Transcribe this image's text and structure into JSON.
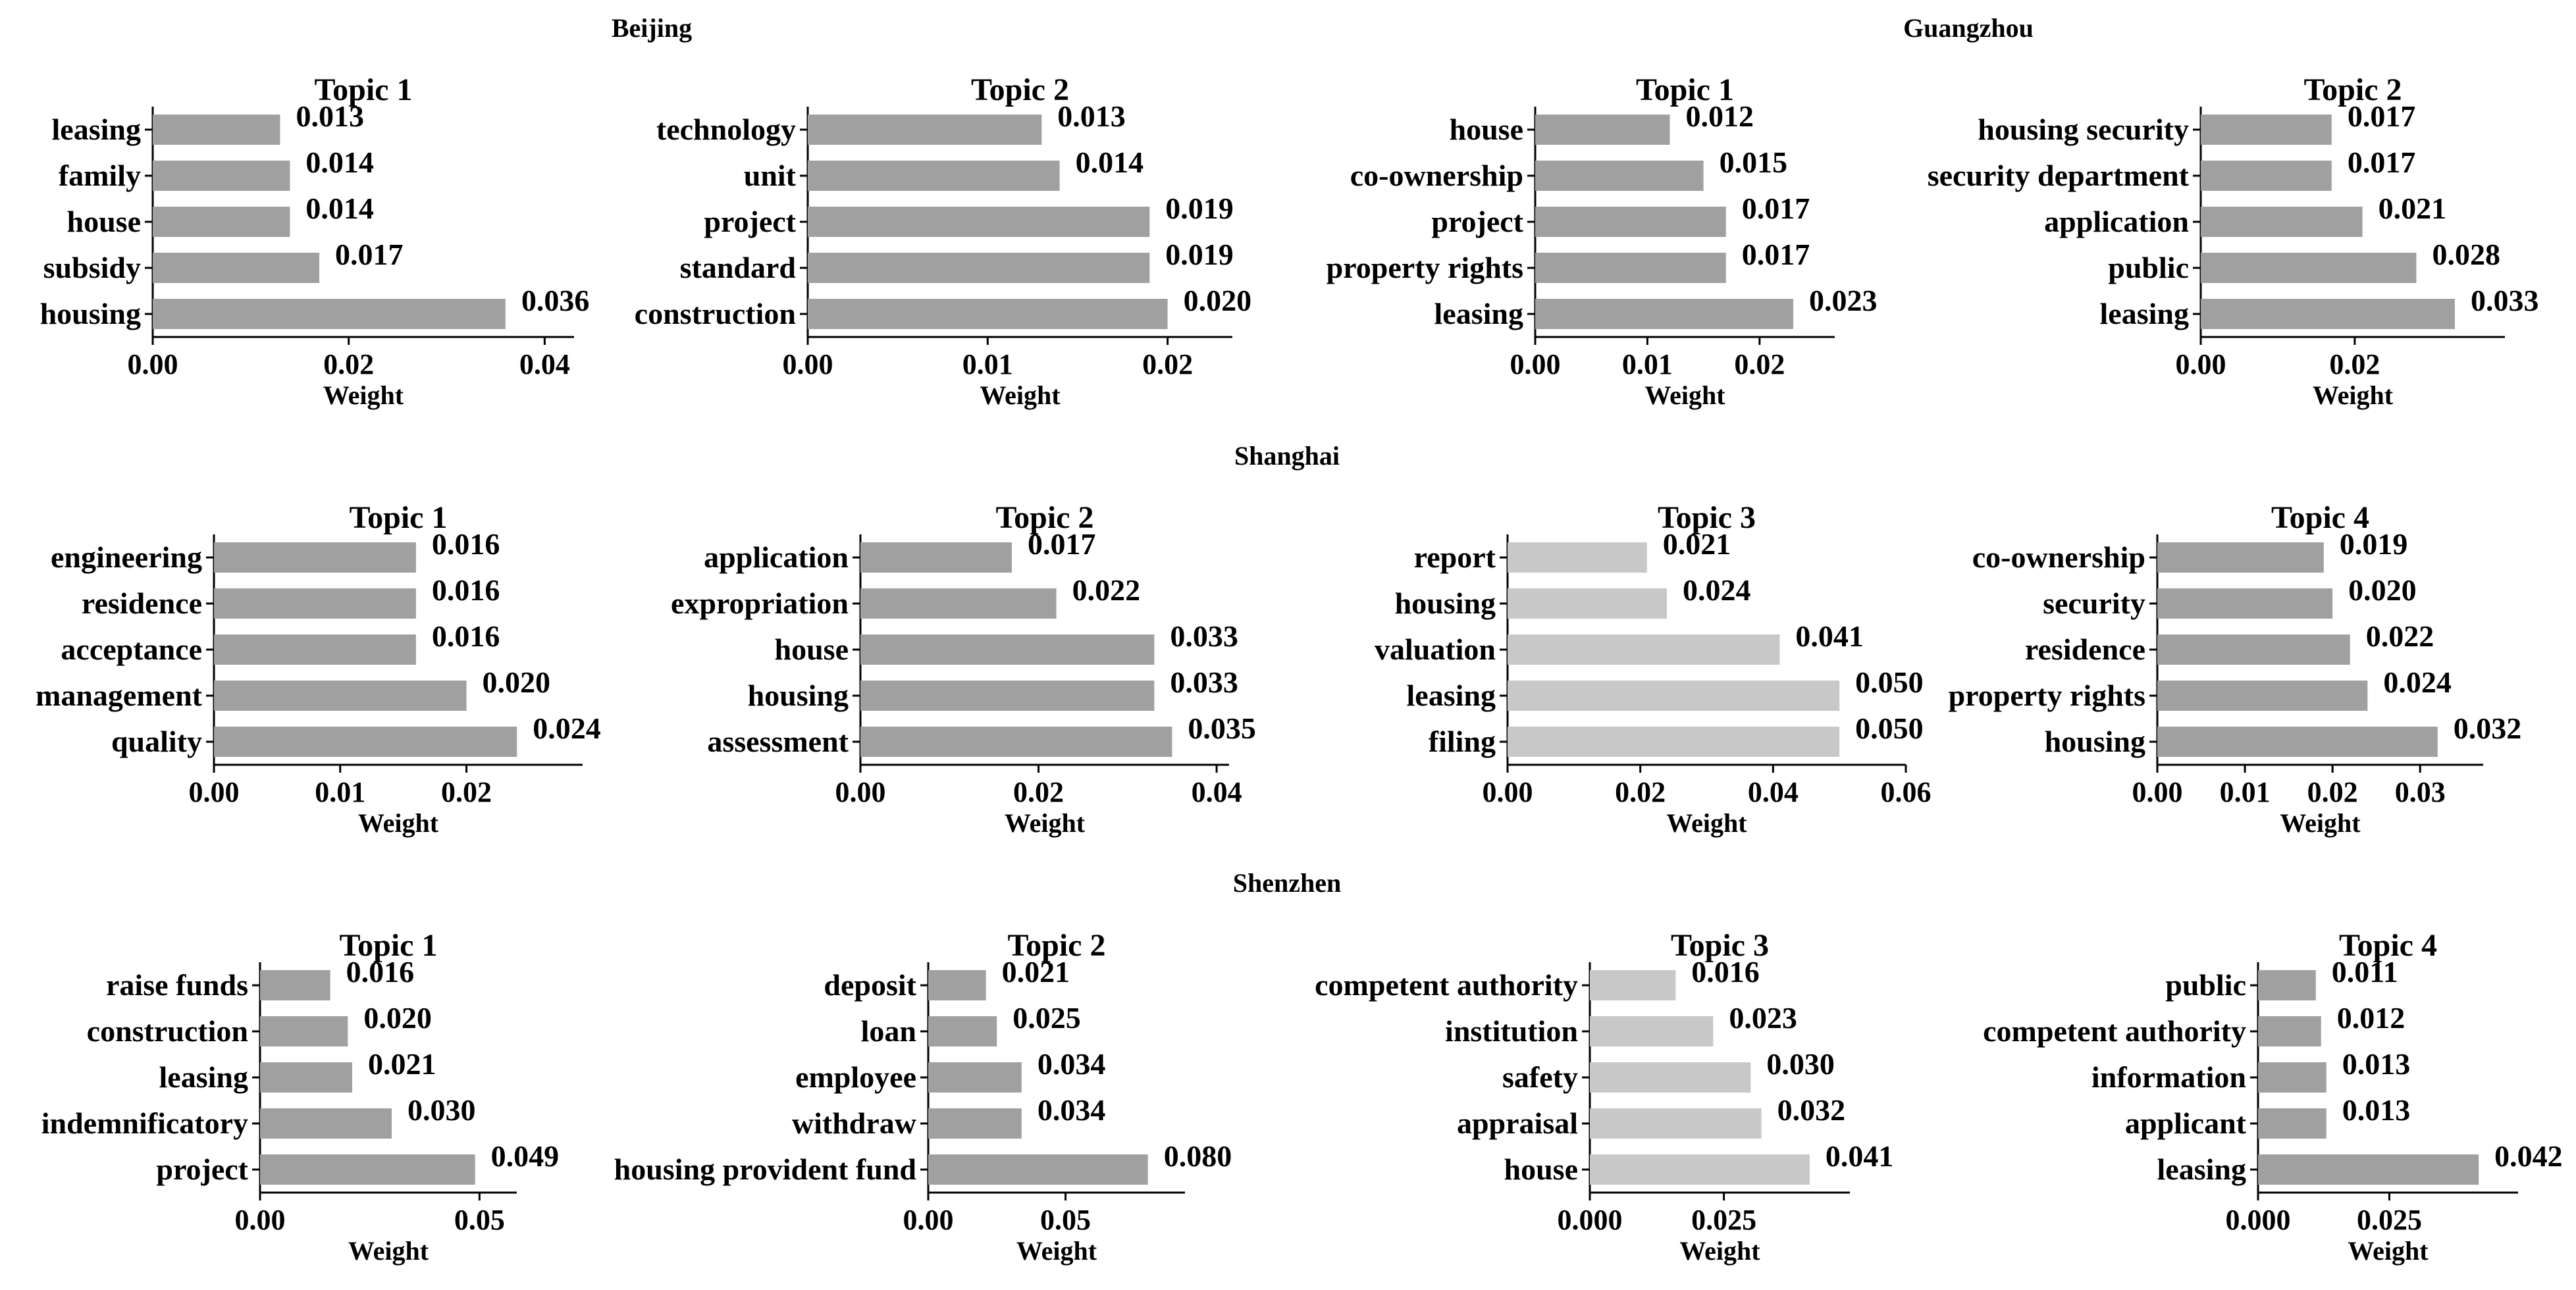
{
  "chart_data": [
    {
      "type": "bar",
      "orientation": "horizontal",
      "city": "Beijing",
      "title": "Topic 1",
      "categories": [
        "leasing",
        "family",
        "house",
        "subsidy",
        "housing"
      ],
      "values": [
        0.013,
        0.014,
        0.014,
        0.017,
        0.036
      ],
      "value_labels": [
        "0.013",
        "0.014",
        "0.014",
        "0.017",
        "0.036"
      ],
      "xlabel": "Weight",
      "xlim": [
        0,
        0.043
      ],
      "xticks": [
        0,
        0.02,
        0.04
      ],
      "xtick_labels": [
        "0.00",
        "0.02",
        "0.04"
      ],
      "color": "#a0a0a0"
    },
    {
      "type": "bar",
      "orientation": "horizontal",
      "city": "Beijing",
      "title": "Topic 2",
      "categories": [
        "technology",
        "unit",
        "project",
        "standard",
        "construction"
      ],
      "values": [
        0.013,
        0.014,
        0.019,
        0.019,
        0.02
      ],
      "value_labels": [
        "0.013",
        "0.014",
        "0.019",
        "0.019",
        "0.020"
      ],
      "xlabel": "Weight",
      "xlim": [
        0,
        0.0236
      ],
      "xticks": [
        0,
        0.01,
        0.02
      ],
      "xtick_labels": [
        "0.00",
        "0.01",
        "0.02"
      ],
      "color": "#a0a0a0"
    },
    {
      "type": "bar",
      "orientation": "horizontal",
      "city": "Guangzhou",
      "title": "Topic 1",
      "categories": [
        "house",
        "co-ownership",
        "project",
        "property rights",
        "leasing"
      ],
      "values": [
        0.012,
        0.015,
        0.017,
        0.017,
        0.023
      ],
      "value_labels": [
        "0.012",
        "0.015",
        "0.017",
        "0.017",
        "0.023"
      ],
      "xlabel": "Weight",
      "xlim": [
        0,
        0.0267
      ],
      "xticks": [
        0,
        0.01,
        0.02
      ],
      "xtick_labels": [
        "0.00",
        "0.01",
        "0.02"
      ],
      "color": "#a0a0a0"
    },
    {
      "type": "bar",
      "orientation": "horizontal",
      "city": "Guangzhou",
      "title": "Topic 2",
      "categories": [
        "housing security",
        "security department",
        "application",
        "public",
        "leasing"
      ],
      "values": [
        0.017,
        0.017,
        0.021,
        0.028,
        0.033
      ],
      "value_labels": [
        "0.017",
        "0.017",
        "0.021",
        "0.028",
        "0.033"
      ],
      "xlabel": "Weight",
      "xlim": [
        0,
        0.0395
      ],
      "xticks": [
        0,
        0.02
      ],
      "xtick_labels": [
        "0.00",
        "0.02"
      ],
      "color": "#a0a0a0"
    },
    {
      "type": "bar",
      "orientation": "horizontal",
      "city": "Shanghai",
      "title": "Topic 1",
      "categories": [
        "engineering",
        "residence",
        "acceptance",
        "management",
        "quality"
      ],
      "values": [
        0.016,
        0.016,
        0.016,
        0.02,
        0.024
      ],
      "value_labels": [
        "0.016",
        "0.016",
        "0.016",
        "0.020",
        "0.024"
      ],
      "xlabel": "Weight",
      "xlim": [
        0,
        0.0292
      ],
      "xticks": [
        0,
        0.01,
        0.02
      ],
      "xtick_labels": [
        "0.00",
        "0.01",
        "0.02"
      ],
      "color": "#a0a0a0"
    },
    {
      "type": "bar",
      "orientation": "horizontal",
      "city": "Shanghai",
      "title": "Topic 2",
      "categories": [
        "application",
        "expropriation",
        "house",
        "housing",
        "assessment"
      ],
      "values": [
        0.017,
        0.022,
        0.033,
        0.033,
        0.035
      ],
      "value_labels": [
        "0.017",
        "0.022",
        "0.033",
        "0.033",
        "0.035"
      ],
      "xlabel": "Weight",
      "xlim": [
        0,
        0.0414
      ],
      "xticks": [
        0,
        0.02,
        0.04
      ],
      "xtick_labels": [
        "0.00",
        "0.02",
        "0.04"
      ],
      "color": "#a0a0a0"
    },
    {
      "type": "bar",
      "orientation": "horizontal",
      "city": "Shanghai",
      "title": "Topic 3",
      "categories": [
        "report",
        "housing",
        "valuation",
        "leasing",
        "filing"
      ],
      "values": [
        0.021,
        0.024,
        0.041,
        0.05,
        0.05
      ],
      "value_labels": [
        "0.021",
        "0.024",
        "0.041",
        "0.050",
        "0.050"
      ],
      "xlabel": "Weight",
      "xlim": [
        0,
        0.06
      ],
      "xticks": [
        0,
        0.02,
        0.04,
        0.06
      ],
      "xtick_labels": [
        "0.00",
        "0.02",
        "0.04",
        "0.06"
      ],
      "color": "#c8c8c8"
    },
    {
      "type": "bar",
      "orientation": "horizontal",
      "city": "Shanghai",
      "title": "Topic 4",
      "categories": [
        "co-ownership",
        "security",
        "residence",
        "property rights",
        "housing"
      ],
      "values": [
        0.019,
        0.02,
        0.022,
        0.024,
        0.032
      ],
      "value_labels": [
        "0.019",
        "0.020",
        "0.022",
        "0.024",
        "0.032"
      ],
      "xlabel": "Weight",
      "xlim": [
        0,
        0.0372
      ],
      "xticks": [
        0,
        0.01,
        0.02,
        0.03
      ],
      "xtick_labels": [
        "0.00",
        "0.01",
        "0.02",
        "0.03"
      ],
      "color": "#a0a0a0"
    },
    {
      "type": "bar",
      "orientation": "horizontal",
      "city": "Shenzhen",
      "title": "Topic 1",
      "categories": [
        "raise funds",
        "construction",
        "leasing",
        "indemnificatory",
        "project"
      ],
      "values": [
        0.016,
        0.02,
        0.021,
        0.03,
        0.049
      ],
      "value_labels": [
        "0.016",
        "0.020",
        "0.021",
        "0.030",
        "0.049"
      ],
      "xlabel": "Weight",
      "xlim": [
        0,
        0.0585
      ],
      "xticks": [
        0,
        0.05
      ],
      "xtick_labels": [
        "0.00",
        "0.05"
      ],
      "color": "#a0a0a0"
    },
    {
      "type": "bar",
      "orientation": "horizontal",
      "city": "Shenzhen",
      "title": "Topic 2",
      "categories": [
        "deposit",
        "loan",
        "employee",
        "withdraw",
        "housing provident fund"
      ],
      "values": [
        0.021,
        0.025,
        0.034,
        0.034,
        0.08
      ],
      "value_labels": [
        "0.021",
        "0.025",
        "0.034",
        "0.034",
        "0.080"
      ],
      "xlabel": "Weight",
      "xlim": [
        0,
        0.0935
      ],
      "xticks": [
        0,
        0.05
      ],
      "xtick_labels": [
        "0.00",
        "0.05"
      ],
      "color": "#a0a0a0"
    },
    {
      "type": "bar",
      "orientation": "horizontal",
      "city": "Shenzhen",
      "title": "Topic 3",
      "categories": [
        "competent authority",
        "institution",
        "safety",
        "appraisal",
        "house"
      ],
      "values": [
        0.016,
        0.023,
        0.03,
        0.032,
        0.041
      ],
      "value_labels": [
        "0.016",
        "0.023",
        "0.030",
        "0.032",
        "0.041"
      ],
      "xlabel": "Weight",
      "xlim": [
        0,
        0.0485
      ],
      "xticks": [
        0,
        0.025
      ],
      "xtick_labels": [
        "0.000",
        "0.025"
      ],
      "color": "#c8c8c8"
    },
    {
      "type": "bar",
      "orientation": "horizontal",
      "city": "Shenzhen",
      "title": "Topic 4",
      "categories": [
        "public",
        "competent authority",
        "information",
        "applicant",
        "leasing"
      ],
      "values": [
        0.011,
        0.012,
        0.013,
        0.013,
        0.042
      ],
      "value_labels": [
        "0.011",
        "0.012",
        "0.013",
        "0.013",
        "0.042"
      ],
      "xlabel": "Weight",
      "xlim": [
        0,
        0.0495
      ],
      "xticks": [
        0,
        0.025
      ],
      "xtick_labels": [
        "0.000",
        "0.025"
      ],
      "color": "#a0a0a0"
    }
  ],
  "city_titles": [
    "Beijing",
    "Guangzhou",
    "Shanghai",
    "Shenzhen"
  ]
}
